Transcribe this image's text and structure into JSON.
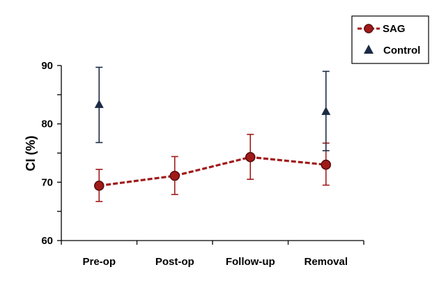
{
  "chart_data": {
    "type": "line",
    "categories": [
      "Pre-op",
      "Post-op",
      "Follow-up",
      "Removal"
    ],
    "ylabel": "CI (%)",
    "xlabel": "",
    "ylim": [
      60,
      90
    ],
    "yticks": [
      60,
      70,
      80,
      90
    ],
    "grid": false,
    "legend_position": "top-right",
    "series": [
      {
        "name": "SAG",
        "marker": "circle",
        "line": "dashed",
        "color": "#a11a1a",
        "x": [
          "Pre-op",
          "Post-op",
          "Follow-up",
          "Removal"
        ],
        "values": [
          69.4,
          71.1,
          74.3,
          73.0
        ],
        "error_low": [
          66.7,
          67.9,
          70.5,
          69.5
        ],
        "error_high": [
          72.2,
          74.4,
          78.2,
          76.7
        ]
      },
      {
        "name": "Control",
        "marker": "triangle",
        "line": "none",
        "color": "#1c2b45",
        "x": [
          "Pre-op",
          "Removal"
        ],
        "values": [
          83.3,
          82.1
        ],
        "error_low": [
          76.8,
          75.4
        ],
        "error_high": [
          89.7,
          89.0
        ]
      }
    ]
  }
}
